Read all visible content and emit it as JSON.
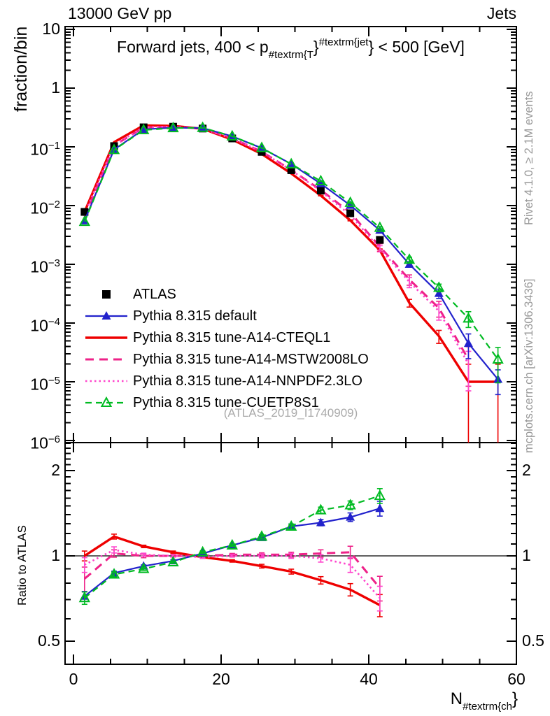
{
  "header": {
    "left": "13000 GeV pp",
    "right": "Jets"
  },
  "side_notes": {
    "top_right": "Rivet 4.1.0, ≥ 2.1M events",
    "bottom_right": "mcplots.cern.ch [arXiv:1306.3436]"
  },
  "watermark": "(ATLAS_2019_I1740909)",
  "chart_data": {
    "type": "line",
    "title_parts": {
      "prefix": "Forward jets, 400 < p",
      "sub": "#textrm{T",
      "mid": "}",
      "sup": "#textrm{jet",
      "close": "}",
      "suffix": " < 500 [GeV]"
    },
    "x_axis": {
      "min": 0,
      "max": 60,
      "minor_step": 5,
      "ticks": [
        {
          "v": 0,
          "t": "0"
        },
        {
          "v": 20,
          "t": "20"
        },
        {
          "v": 40,
          "t": "40"
        },
        {
          "v": 60,
          "t": "60"
        }
      ],
      "label_main": "N",
      "label_sub": "#textrm{ch",
      "label_close": "}"
    },
    "y_main_axis": {
      "label": "fraction/bin",
      "scale": "log",
      "range": [
        1e-06,
        10
      ],
      "ticks": [
        {
          "v": 10,
          "t": "10"
        },
        {
          "v": 1,
          "t": "1"
        },
        {
          "v": 0.1,
          "t": "10",
          "e": "−1"
        },
        {
          "v": 0.01,
          "t": "10",
          "e": "−2"
        },
        {
          "v": 0.001,
          "t": "10",
          "e": "−3"
        },
        {
          "v": 0.0001,
          "t": "10",
          "e": "−4"
        },
        {
          "v": 1e-05,
          "t": "10",
          "e": "−5"
        },
        {
          "v": 1e-06,
          "t": "10",
          "e": "−6"
        }
      ]
    },
    "y_ratio_axis": {
      "label": "Ratio to ATLAS",
      "scale": "log",
      "range": [
        0.414,
        2.51
      ],
      "reference_line": 1,
      "ticks": [
        {
          "v": 2,
          "t": "2"
        },
        {
          "v": 1,
          "t": "1"
        },
        {
          "v": 0.5,
          "t": "0.5"
        }
      ],
      "minor_ticks": [
        0.6,
        0.7,
        0.8,
        0.9,
        1.1,
        1.2,
        1.3,
        1.4,
        1.5,
        1.6,
        1.7,
        1.8,
        1.9,
        2.1,
        2.2,
        2.3,
        2.4,
        2.5
      ]
    },
    "bins": [
      1.5,
      5.5,
      9.5,
      13.5,
      17.5,
      21.5,
      25.5,
      29.5,
      33.5,
      37.5,
      41.5,
      45.5,
      49.5,
      53.5,
      57.5
    ],
    "series": [
      {
        "name": "ATLAS",
        "color": "#000000",
        "line": "none",
        "marker": "square-filled",
        "y": [
          0.0078,
          0.103,
          0.215,
          0.22,
          0.205,
          0.139,
          0.082,
          0.04,
          0.018,
          0.0074,
          0.0026
        ],
        "yerr_rel": [
          0.03,
          0.01,
          0.01,
          0.01,
          0.01,
          0.01,
          0.01,
          0.015,
          0.02,
          0.03,
          0.05
        ]
      },
      {
        "name": "Pythia 8.315 default",
        "color": "#2222cc",
        "line": "solid",
        "line_width": 2.2,
        "marker": "triangle-filled",
        "y": [
          0.0055,
          0.09,
          0.198,
          0.212,
          0.209,
          0.151,
          0.095,
          0.051,
          0.0236,
          0.0101,
          0.0038,
          0.001,
          0.00032,
          4.5e-05,
          1.1e-05
        ],
        "yerr_rel": [
          0,
          0,
          0,
          0,
          0,
          0,
          0,
          0,
          0.01,
          0.02,
          0.04,
          0.1,
          0.18,
          0.45,
          0.45
        ],
        "ratio": [
          0.72,
          0.87,
          0.92,
          0.96,
          1.02,
          1.09,
          1.16,
          1.27,
          1.31,
          1.37,
          1.47
        ],
        "ratio_err": [
          0.04,
          0.015,
          0.01,
          0.01,
          0.01,
          0.01,
          0.015,
          0.02,
          0.025,
          0.035,
          0.06
        ]
      },
      {
        "name": "Pythia 8.315 tune-A14-CTEQL1",
        "color": "#ee0000",
        "line": "solid",
        "line_width": 3.4,
        "marker": "none",
        "y": [
          0.0078,
          0.12,
          0.232,
          0.227,
          0.203,
          0.133,
          0.0755,
          0.0352,
          0.0148,
          0.0056,
          0.00174,
          0.00022,
          6e-05,
          1e-05,
          1e-05
        ],
        "yerr_rel": [
          0,
          0,
          0,
          0,
          0,
          0,
          0,
          0,
          0.01,
          0.02,
          0.05,
          0.15,
          0.25,
          0.99,
          0.99
        ],
        "ratio": [
          1.0,
          1.17,
          1.08,
          1.03,
          0.99,
          0.96,
          0.92,
          0.88,
          0.82,
          0.76,
          0.67
        ],
        "ratio_err": [
          0.04,
          0.02,
          0.01,
          0.01,
          0.01,
          0.01,
          0.015,
          0.02,
          0.03,
          0.05,
          0.09
        ]
      },
      {
        "name": "Pythia 8.315 tune-A14-MSTW2008LO",
        "color": "#ee2288",
        "line": "dashed",
        "line_width": 3,
        "marker": "none",
        "y": [
          0.0065,
          0.105,
          0.215,
          0.22,
          0.205,
          0.14,
          0.0828,
          0.0404,
          0.0184,
          0.0076,
          0.002,
          0.00055,
          0.00018,
          2.4e-05
        ],
        "yerr_rel": [
          0,
          0,
          0,
          0,
          0,
          0,
          0,
          0,
          0.02,
          0.04,
          0.12,
          0.2,
          0.3,
          0.65
        ],
        "ratio": [
          0.83,
          1.02,
          1.0,
          1.0,
          1.0,
          1.01,
          1.01,
          1.01,
          1.02,
          1.03,
          0.77
        ],
        "ratio_err": [
          0.1,
          0.03,
          0.015,
          0.01,
          0.01,
          0.01,
          0.015,
          0.02,
          0.03,
          0.05,
          0.1
        ]
      },
      {
        "name": "Pythia 8.315 tune-A14-NNPDF2.3LO",
        "color": "#ff44cc",
        "line": "dotted",
        "line_width": 2.6,
        "marker": "none",
        "y": [
          0.0072,
          0.108,
          0.217,
          0.22,
          0.203,
          0.139,
          0.082,
          0.04,
          0.0176,
          0.0069,
          0.00185,
          0.0005,
          0.00016,
          2e-05
        ],
        "yerr_rel": [
          0,
          0,
          0,
          0,
          0,
          0,
          0,
          0,
          0.02,
          0.04,
          0.12,
          0.2,
          0.3,
          0.65
        ],
        "ratio": [
          0.93,
          1.05,
          1.01,
          1.0,
          0.99,
          1.0,
          1.0,
          1.0,
          0.98,
          0.93,
          0.71
        ],
        "ratio_err": [
          0.06,
          0.025,
          0.012,
          0.01,
          0.01,
          0.01,
          0.015,
          0.02,
          0.03,
          0.06,
          0.1
        ]
      },
      {
        "name": "Pythia 8.315 tune-CUETP8S1",
        "color": "#00bb22",
        "line": "dashed",
        "line_width": 2.2,
        "marker": "triangle-open",
        "y": [
          0.0053,
          0.0886,
          0.1935,
          0.209,
          0.211,
          0.1515,
          0.096,
          0.0508,
          0.0261,
          0.0112,
          0.0042,
          0.0012,
          0.0004,
          0.00012,
          2.4e-05
        ],
        "yerr_rel": [
          0,
          0,
          0,
          0,
          0,
          0,
          0,
          0,
          0.01,
          0.02,
          0.04,
          0.1,
          0.15,
          0.3,
          0.6
        ],
        "ratio": [
          0.71,
          0.86,
          0.9,
          0.95,
          1.03,
          1.09,
          1.17,
          1.27,
          1.45,
          1.51,
          1.63
        ],
        "ratio_err": [
          0.05,
          0.02,
          0.012,
          0.01,
          0.01,
          0.01,
          0.015,
          0.02,
          0.025,
          0.035,
          0.06
        ]
      }
    ],
    "legend_position": "middle-left",
    "grid": false
  }
}
